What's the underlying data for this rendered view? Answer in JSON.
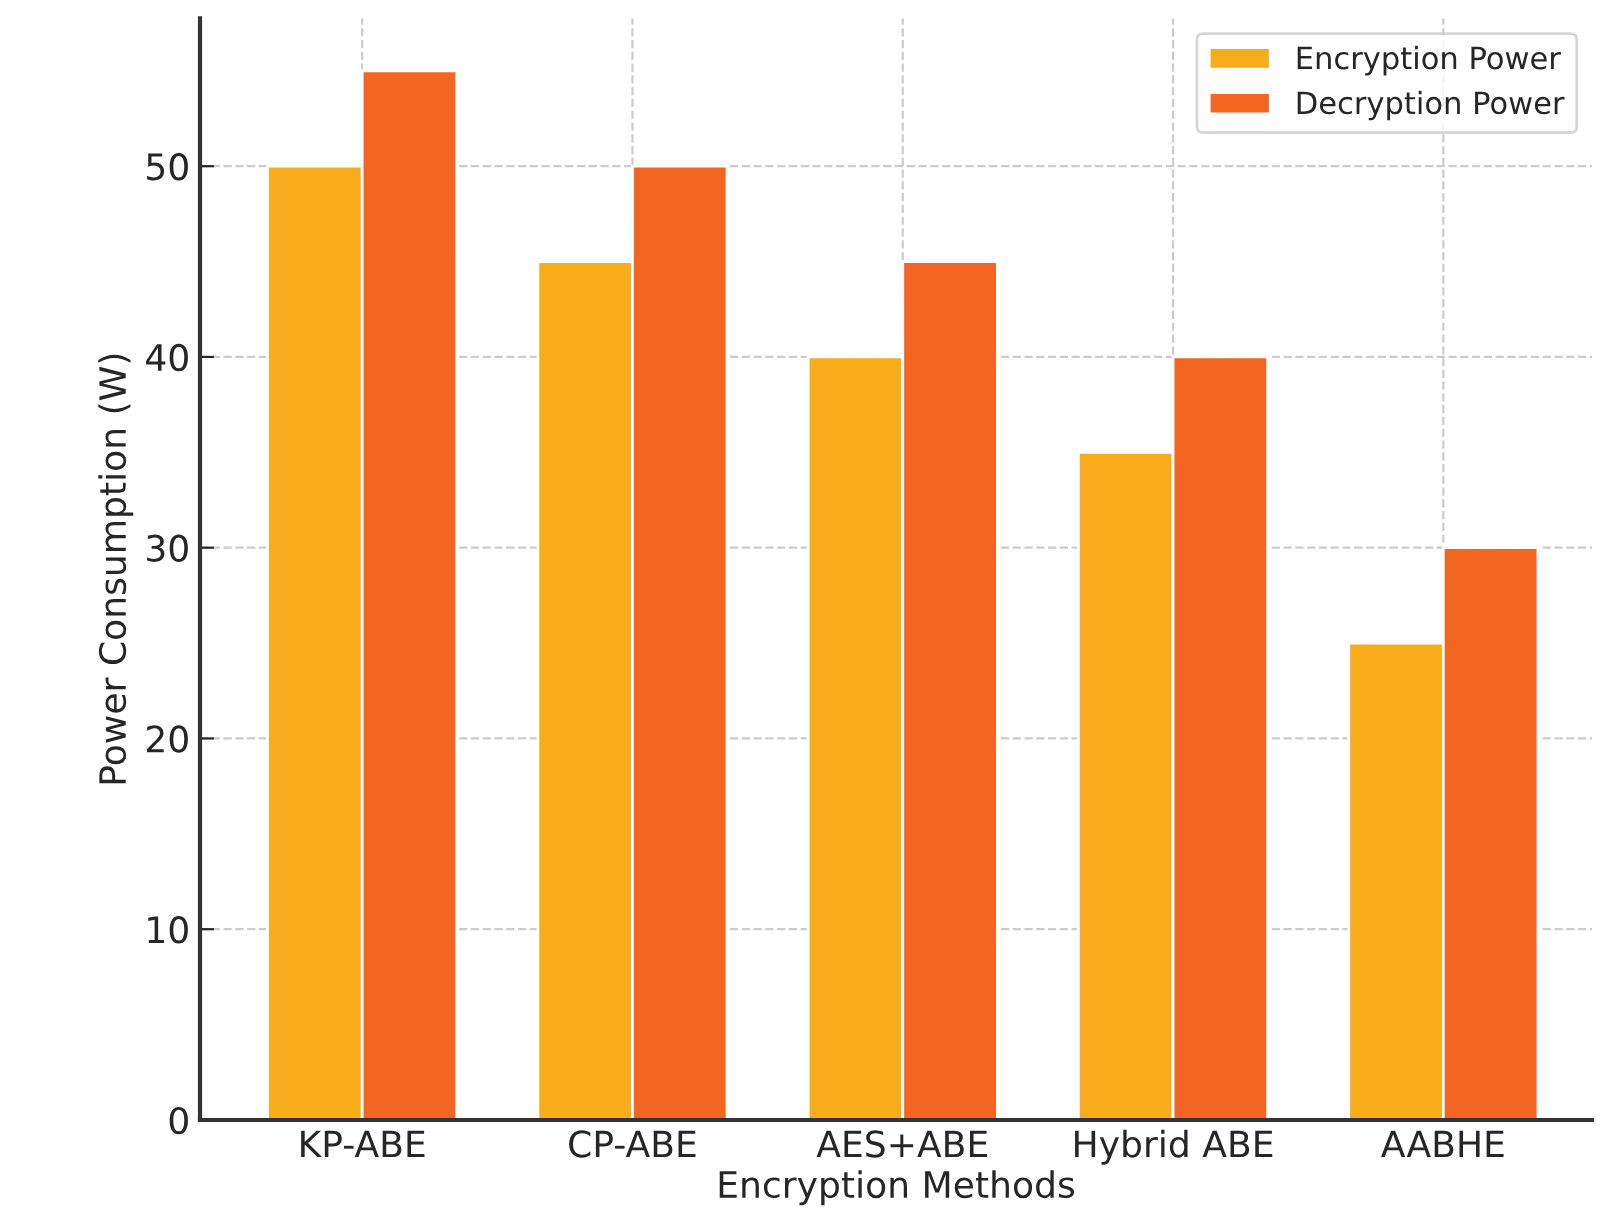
{
  "chart_data": {
    "type": "bar",
    "xlabel": "Encryption Methods",
    "ylabel": "Power Consumption (W)",
    "categories": [
      "KP-ABE",
      "CP-ABE",
      "AES+ABE",
      "Hybrid ABE",
      "AABHE"
    ],
    "series": [
      {
        "name": "Encryption Power",
        "color": "#f8ac1c",
        "values": [
          50,
          45,
          40,
          35,
          25
        ]
      },
      {
        "name": "Decryption Power",
        "color": "#f26522",
        "values": [
          55,
          50,
          45,
          40,
          30
        ]
      }
    ],
    "ylim": [
      0,
      57.75
    ],
    "yticks": [
      0,
      10,
      20,
      30,
      40,
      50
    ],
    "grid": true,
    "legend": "top right"
  }
}
